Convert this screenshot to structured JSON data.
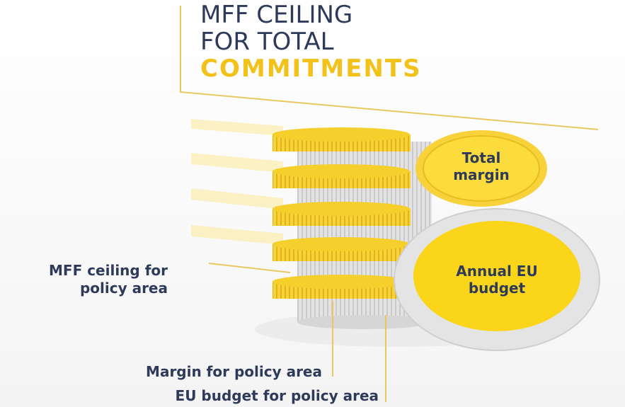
{
  "title": {
    "lines": [
      "MFF CEILING",
      "FOR TOTAL",
      "COMMITMENTS"
    ]
  },
  "coins": {
    "total_margin": {
      "lines": [
        "Total",
        "margin"
      ]
    },
    "annual_budget": {
      "lines": [
        "Annual EU",
        "budget"
      ]
    }
  },
  "labels": {
    "mff_ceiling_policy": {
      "lines": [
        "MFF ceiling for",
        "policy area"
      ]
    },
    "margin_policy": "Margin for policy area",
    "eu_budget_policy": "EU budget for policy area"
  }
}
